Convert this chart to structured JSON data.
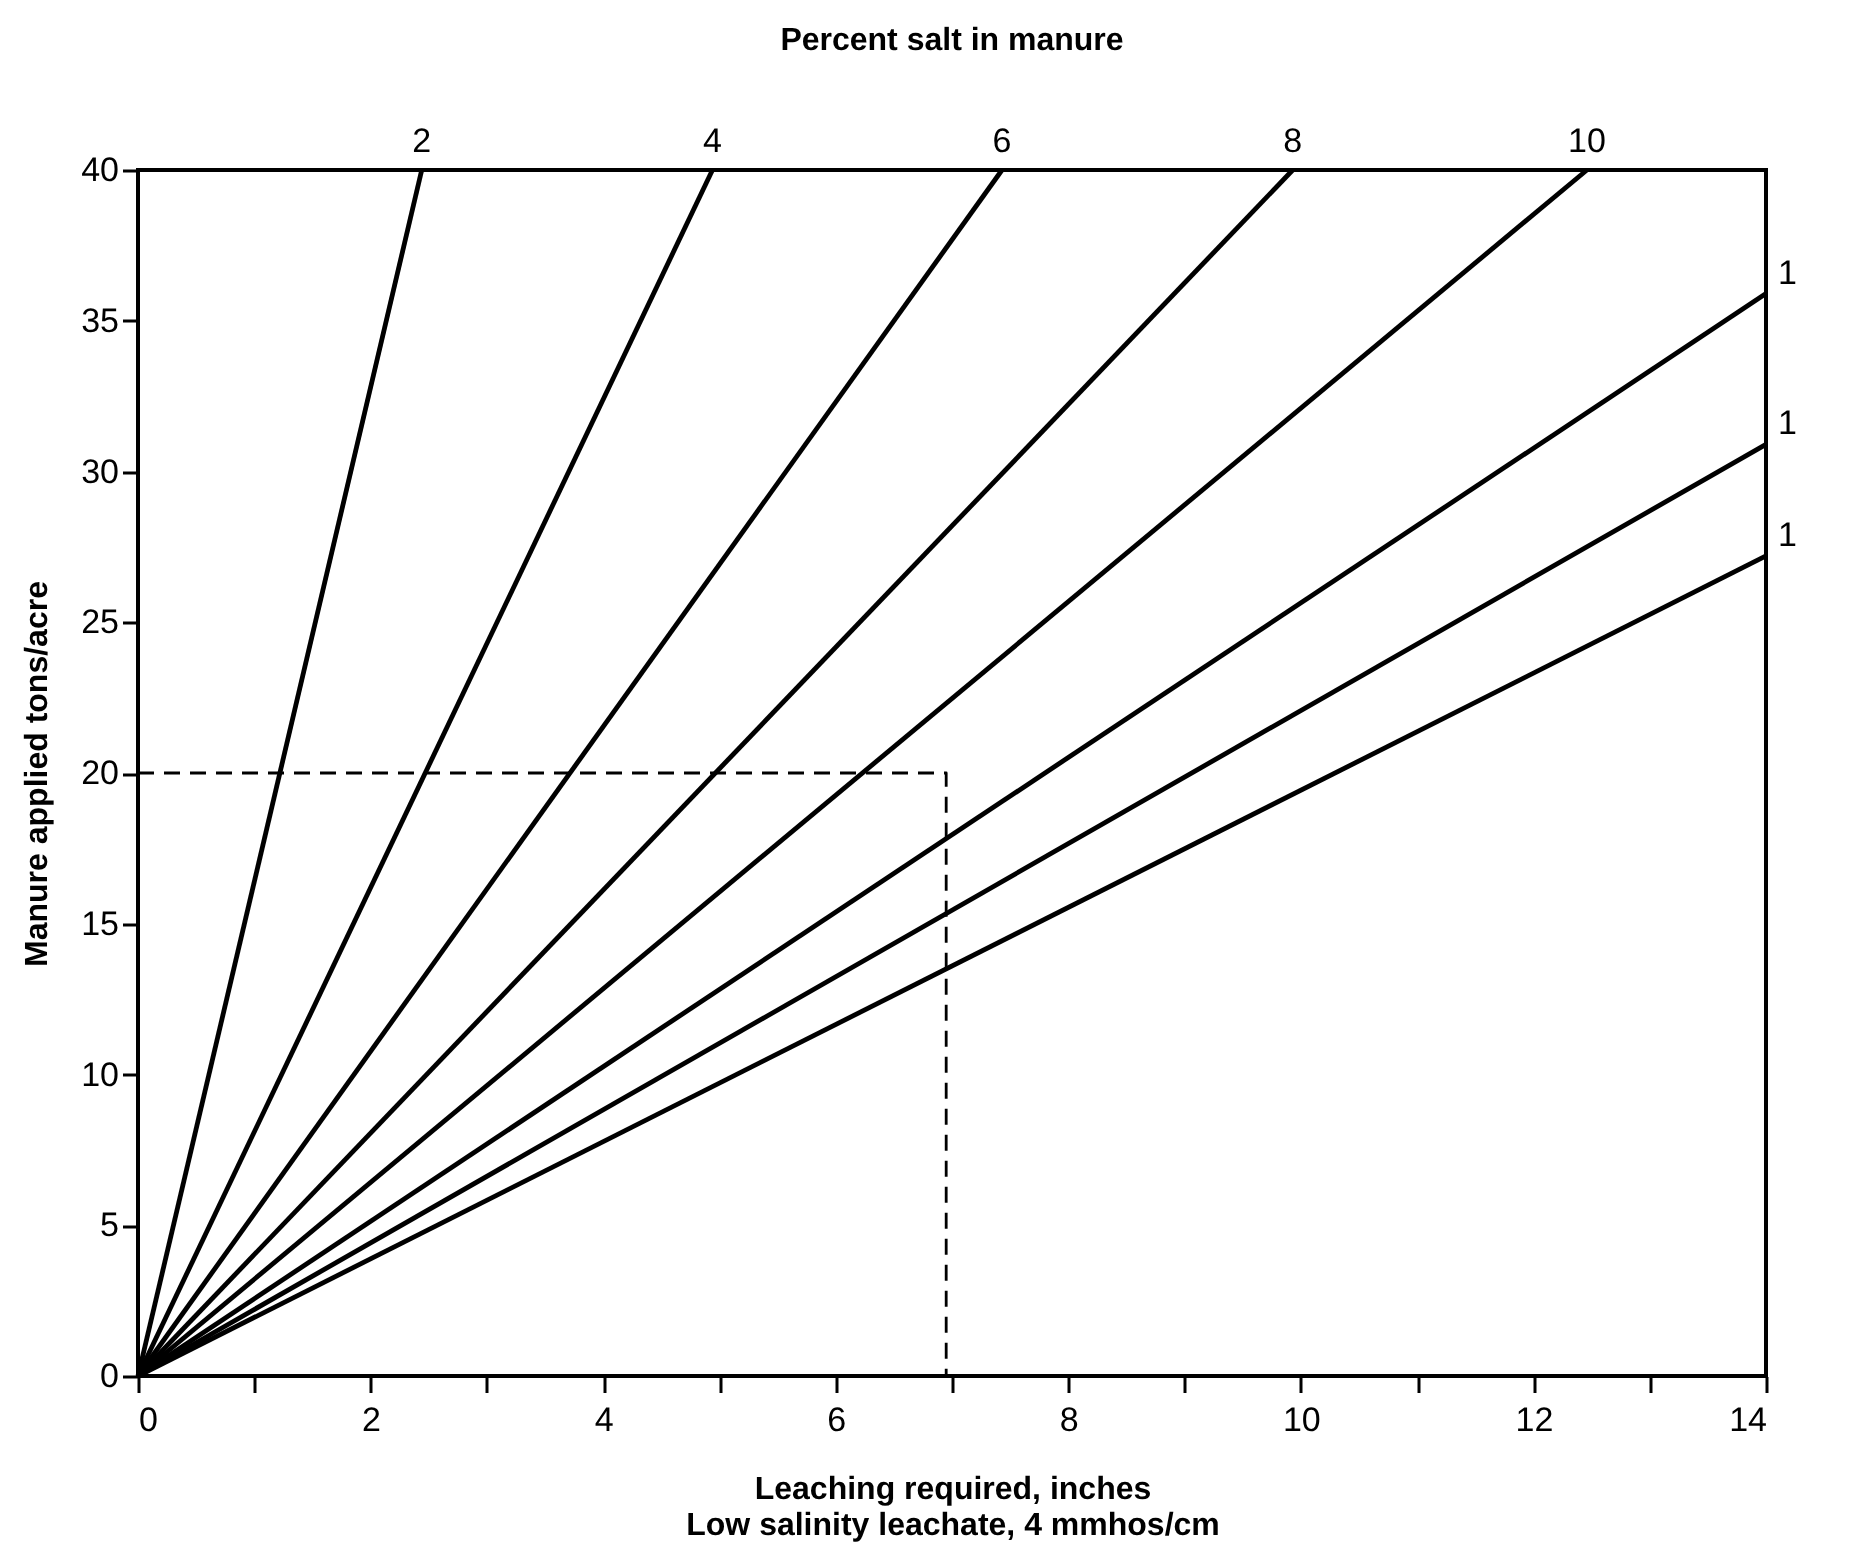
{
  "chart_data": {
    "type": "line",
    "legend_title": "Percent salt in manure",
    "xlabel": "Leaching required, inches\nLow salinity leachate, 4 mmhos/cm",
    "ylabel": "Manure applied tons/acre",
    "xlim": [
      0,
      14
    ],
    "ylim": [
      0,
      40
    ],
    "xticks": [
      0,
      {
        "value": 1,
        "label": null
      },
      2,
      {
        "value": 3,
        "label": null
      },
      4,
      {
        "value": 5,
        "label": null
      },
      6,
      {
        "value": 7,
        "label": null
      },
      8,
      {
        "value": 9,
        "label": null
      },
      10,
      {
        "value": 11,
        "label": null
      },
      12,
      {
        "value": 13,
        "label": null
      },
      14
    ],
    "yticks": [
      0,
      5,
      10,
      15,
      20,
      25,
      30,
      35,
      40
    ],
    "grid": false,
    "marker": "none",
    "line_style": "solid",
    "series": [
      {
        "name": "2",
        "color": "#000000",
        "x": [
          0,
          2.44
        ],
        "values": [
          0,
          40
        ]
      },
      {
        "name": "4",
        "color": "#000000",
        "x": [
          0,
          4.94
        ],
        "values": [
          0,
          40
        ]
      },
      {
        "name": "6",
        "color": "#000000",
        "x": [
          0,
          7.43
        ],
        "values": [
          0,
          40
        ]
      },
      {
        "name": "8",
        "color": "#000000",
        "x": [
          0,
          9.93
        ],
        "values": [
          0,
          40
        ]
      },
      {
        "name": "10",
        "color": "#000000",
        "x": [
          0,
          12.46
        ],
        "values": [
          0,
          40
        ]
      },
      {
        "name": "1",
        "color": "#000000",
        "x": [
          0,
          14
        ],
        "values": [
          0,
          35.9
        ]
      },
      {
        "name": "1",
        "color": "#000000",
        "x": [
          0,
          14
        ],
        "values": [
          0,
          30.9
        ]
      },
      {
        "name": "1",
        "color": "#000000",
        "x": [
          0,
          14
        ],
        "values": [
          0,
          27.2
        ]
      },
      {
        "color": "#000000",
        "line_style": "dashed",
        "x": [
          0,
          6.95,
          6.95
        ],
        "values": [
          20,
          20,
          0
        ]
      }
    ]
  }
}
